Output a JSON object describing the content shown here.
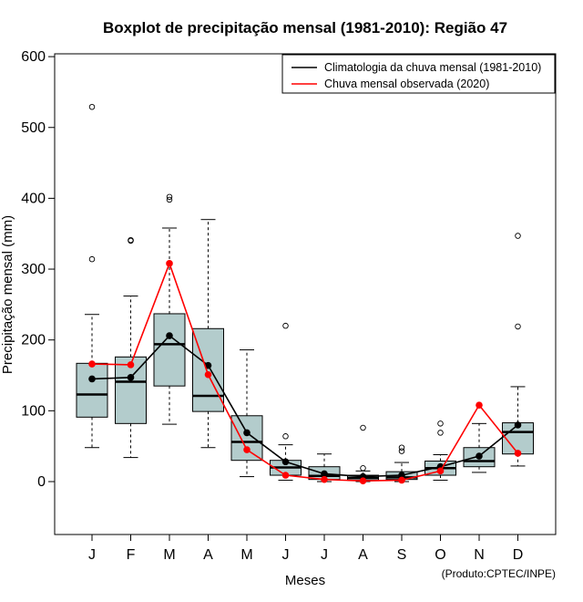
{
  "chart_data": {
    "type": "boxplot",
    "title": "Boxplot de precipitação mensal (1981-2010): Região 47",
    "xlabel": "Meses",
    "ylabel": "Precipitação mensal (mm)",
    "ylim": [
      -75,
      605
    ],
    "yticks": [
      0,
      100,
      200,
      300,
      400,
      500,
      600
    ],
    "categories": [
      "J",
      "F",
      "M",
      "A",
      "M",
      "J",
      "J",
      "A",
      "S",
      "O",
      "N",
      "D"
    ],
    "boxes": [
      {
        "whisker_low": 48,
        "q1": 91,
        "median": 123,
        "q3": 167,
        "whisker_high": 236,
        "outliers": [
          314,
          529
        ]
      },
      {
        "whisker_low": 34,
        "q1": 82,
        "median": 141,
        "q3": 176,
        "whisker_high": 262,
        "outliers": [
          340,
          341
        ]
      },
      {
        "whisker_low": 81,
        "q1": 135,
        "median": 194,
        "q3": 237,
        "whisker_high": 358,
        "outliers": [
          398,
          402
        ]
      },
      {
        "whisker_low": 48,
        "q1": 99,
        "median": 121,
        "q3": 216,
        "whisker_high": 370,
        "outliers": []
      },
      {
        "whisker_low": 7,
        "q1": 30,
        "median": 56,
        "q3": 93,
        "whisker_high": 186,
        "outliers": []
      },
      {
        "whisker_low": 2,
        "q1": 9,
        "median": 20,
        "q3": 30,
        "whisker_high": 52,
        "outliers": [
          64,
          220
        ]
      },
      {
        "whisker_low": 0,
        "q1": 3,
        "median": 8,
        "q3": 21,
        "whisker_high": 39,
        "outliers": []
      },
      {
        "whisker_low": 0,
        "q1": 2,
        "median": 5,
        "q3": 9,
        "whisker_high": 15,
        "outliers": [
          19,
          76
        ]
      },
      {
        "whisker_low": 0,
        "q1": 3,
        "median": 6,
        "q3": 14,
        "whisker_high": 27,
        "outliers": [
          43,
          48
        ]
      },
      {
        "whisker_low": 2,
        "q1": 9,
        "median": 19,
        "q3": 29,
        "whisker_high": 38,
        "outliers": [
          69,
          82
        ]
      },
      {
        "whisker_low": 13,
        "q1": 21,
        "median": 29,
        "q3": 48,
        "whisker_high": 82,
        "outliers": []
      },
      {
        "whisker_low": 22,
        "q1": 39,
        "median": 70,
        "q3": 83,
        "whisker_high": 134,
        "outliers": [
          219,
          347
        ]
      }
    ],
    "series": [
      {
        "name": "Climatologia da chuva mensal (1981-2010)",
        "color": "#000000",
        "values": [
          145,
          147,
          206,
          164,
          69,
          28,
          11,
          7,
          9,
          21,
          36,
          80
        ]
      },
      {
        "name": "Chuva mensal observada (2020)",
        "color": "#ff0000",
        "values": [
          166,
          165,
          308,
          151,
          45,
          9,
          3,
          1,
          2,
          15,
          108,
          40
        ]
      }
    ],
    "legend_position": "top-right",
    "box_fill": "#b3cccc",
    "credit": "(Produto:CPTEC/INPE)"
  }
}
